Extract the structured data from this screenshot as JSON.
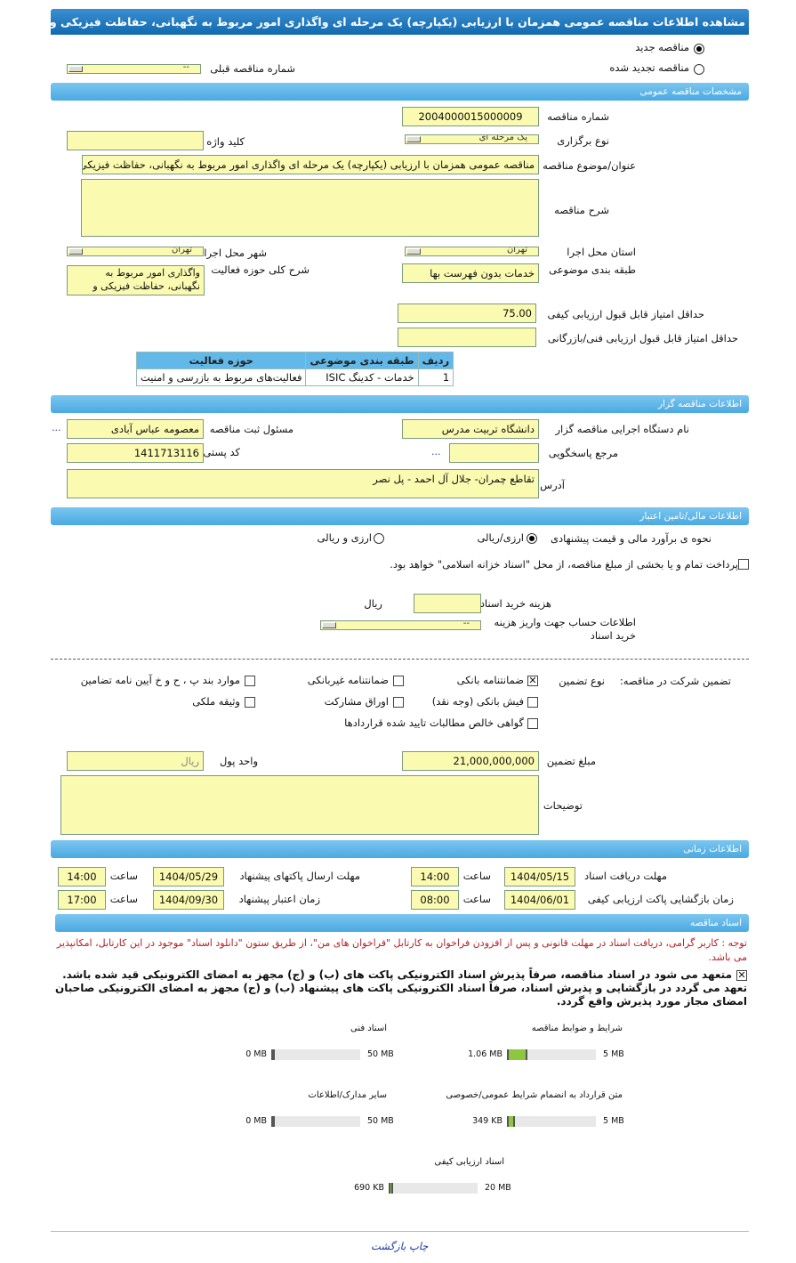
{
  "title": "مشاهده اطلاعات مناقصه عمومی همزمان با ارزیابی (یکپارچه) یک مرحله ای واگذاری امور مربوط به نگهبانی، حفاظت فیزیکی و حراست",
  "tender_type": {
    "new_label": "مناقصه جدید",
    "renewed_label": "مناقصه تجدید شده",
    "selected": "new",
    "prev_number_label": "شماره مناقصه قبلی",
    "prev_number_value": "--"
  },
  "general": {
    "header": "مشخصات مناقصه عمومی",
    "number_label": "شماره مناقصه",
    "number_value": "2004000015000009",
    "holding_type_label": "نوع برگزاری",
    "holding_type_value": "یک مرحله ای",
    "keyword_label": "کلید واژه",
    "keyword_value": "",
    "subject_label": "عنوان/موضوع مناقصه",
    "subject_value": "مناقصه عمومی همزمان با ارزیابی (یکپارچه) یک مرحله ای واگذاری امور مربوط به نگهبانی، حفاظت فیزیکی",
    "description_label": "شرح مناقصه",
    "description_value": "",
    "province_label": "استان محل اجرا",
    "province_value": "تهران",
    "city_label": "شهر محل اجرا",
    "city_value": "تهران",
    "category_label": "طبقه بندی موضوعی",
    "category_value": "خدمات بدون فهرست بها",
    "activity_label": "شرح کلی حوزه فعالیت",
    "activity_value": "واگذاری امور مربوط به نگهبانی، حفاظت فیزیکی و",
    "min_quality_label": "حداقل امتیاز قابل قبول ارزیابی کیفی",
    "min_quality_value": "75.00",
    "min_tech_label": "حداقل امتیاز قابل قبول ارزیابی فنی/بازرگانی",
    "min_tech_value": "",
    "table": {
      "headers": [
        "ردیف",
        "طبقه بندی موضوعی",
        "حوزه فعالیت"
      ],
      "rows": [
        [
          "1",
          "خدمات - کدینگ ISIC",
          "فعالیت‌های مربوط به بازرسی و امنیت"
        ]
      ]
    }
  },
  "organizer": {
    "header": "اطلاعات مناقصه گزار",
    "org_label": "نام دستگاه اجرایی مناقصه گزار",
    "org_value": "دانشگاه تربیت مدرس",
    "responsible_label": "مسئول ثبت مناقصه",
    "responsible_value": "معصومه عباس آبادی",
    "reference_label": "مرجع پاسخگویی",
    "reference_value": "",
    "postal_label": "کد پستی",
    "postal_value": "1411713116",
    "address_label": "آدرس",
    "address_value": "تقاطع چمران- جلال آل احمد - پل نصر",
    "more": "..."
  },
  "finance": {
    "header": "اطلاعات مالی/تامین اعتبار",
    "estimate_label": "نحوه ی برآورد مالی و قیمت پیشنهادی",
    "opt1": "ارزی/ریالی",
    "opt2": "ارزی و ریالی",
    "selected": "opt1",
    "treasury_text": "پرداخت تمام و یا بخشی از مبلغ مناقصه، از محل \"اسناد خزانه اسلامی\" خواهد بود.",
    "treasury_checked": false,
    "doc_cost_label": "هزینه خرید اسناد",
    "doc_cost_value": "",
    "doc_cost_unit": "ریال",
    "account_label": "اطلاعات حساب جهت واریز هزینه خرید اسناد",
    "account_value": "--",
    "guarantee_label": "تضمین شرکت در مناقصه:",
    "guarantee_type_label": "نوع تضمین",
    "guarantees": [
      {
        "label": "ضمانتنامه بانکی",
        "checked": true
      },
      {
        "label": "ضمانتنامه غیربانکی",
        "checked": false
      },
      {
        "label": "موارد بند پ ، ح و خ آیین نامه تضامین",
        "checked": false
      },
      {
        "label": "فیش بانکی (وجه نقد)",
        "checked": false
      },
      {
        "label": "اوراق مشارکت",
        "checked": false
      },
      {
        "label": "وثیقه ملکی",
        "checked": false
      },
      {
        "label": "گواهی خالص مطالبات تایید شده قراردادها",
        "checked": false
      }
    ],
    "amount_label": "مبلغ تضمین",
    "amount_value": "21,000,000,000",
    "currency_label": "واحد پول",
    "currency_value": "ریال",
    "notes_label": "توضیحات",
    "notes_value": ""
  },
  "time": {
    "header": "اطلاعات زمانی",
    "hour_label": "ساعت",
    "doc_deadline_label": "مهلت دریافت اسناد",
    "doc_deadline_date": "1404/05/15",
    "doc_deadline_time": "14:00",
    "send_deadline_label": "مهلت ارسال پاکتهای پیشنهاد",
    "send_deadline_date": "1404/05/29",
    "send_deadline_time": "14:00",
    "open_label": "زمان بازگشایی پاکت ارزیابی کیفی",
    "open_date": "1404/06/01",
    "open_time": "08:00",
    "validity_label": "زمان اعتبار پیشنهاد",
    "validity_date": "1404/09/30",
    "validity_time": "17:00"
  },
  "documents": {
    "header": "اسناد مناقصه",
    "note": "توجه : کاربر گرامی، دریافت اسناد در مهلت قانونی و پس از افزودن فراخوان به کارتابل \"فراخوان های من\"، از طریق ستون \"دانلود اسناد\" موجود در این کارتابل، امکانپذیر می باشد.",
    "commit1": "متعهد می شود در اسناد مناقصه، صرفاً پذیرش اسناد الکترونیکی پاکت های (ب) و (ج) مجهز به امضای الکترونیکی قید شده باشد.",
    "commit2": "تعهد می گردد در بازگشایی و پذیرش اسناد، صرفاً اسناد الکترونیکی پاکت های پیشنهاد (ب) و (ج) مجهز به امضای الکترونیکی صاحبان امضای مجاز مورد پذیرش واقع گردد.",
    "commit_checked": true,
    "files": [
      {
        "label": "شرایط و ضوابط مناقصه",
        "size": "1.06 MB",
        "max": "5 MB",
        "fraction": 0.21
      },
      {
        "label": "اسناد فنی",
        "size": "0 MB",
        "max": "50 MB",
        "fraction": 0
      },
      {
        "label": "متن قرارداد به انضمام شرایط عمومی/خصوصی",
        "size": "349 KB",
        "max": "5 MB",
        "fraction": 0.07
      },
      {
        "label": "سایر مدارک/اطلاعات",
        "size": "0 MB",
        "max": "50 MB",
        "fraction": 0
      },
      {
        "label": "اسناد ارزیابی کیفی",
        "size": "690 KB",
        "max": "20 MB",
        "fraction": 0.034
      }
    ]
  },
  "footer": {
    "print": "چاپ",
    "back": "بازگشت"
  },
  "colors": {
    "title_bar": "#1a74b8",
    "section_bar": "#5ab3e6",
    "input_bg": "#fafab0",
    "progress": "#8dc63f",
    "note": "#b2222a"
  }
}
